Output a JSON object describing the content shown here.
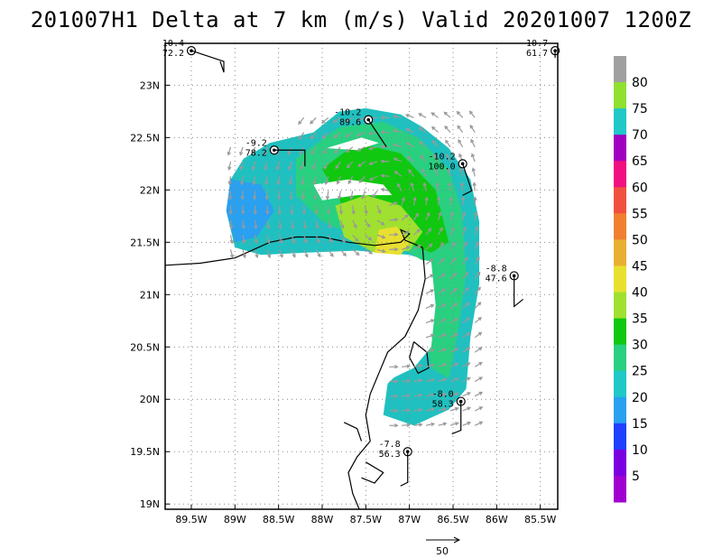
{
  "title": "201007H1  Delta  at  7  km  (m/s)  Valid  20201007  1200Z",
  "chart_data": {
    "type": "wind_map",
    "title": "201007H1  Delta  at  7  km  (m/s)  Valid  20201007  1200Z",
    "xlim": [
      -89.8,
      -85.3
    ],
    "ylim": [
      18.95,
      23.4
    ],
    "x_ticks": [
      "89.5W",
      "89W",
      "88.5W",
      "88W",
      "87.5W",
      "87W",
      "86.5W",
      "86W",
      "85.5W"
    ],
    "x_tick_values": [
      -89.5,
      -89,
      -88.5,
      -88,
      -87.5,
      -87,
      -86.5,
      -86,
      -85.5
    ],
    "y_ticks": [
      "19N",
      "19.5N",
      "20N",
      "20.5N",
      "21N",
      "21.5N",
      "22N",
      "22.5N",
      "23N"
    ],
    "y_tick_values": [
      19,
      19.5,
      20,
      20.5,
      21,
      21.5,
      22,
      22.5,
      23
    ],
    "grid": true,
    "colorbar": {
      "labels": [
        "5",
        "10",
        "15",
        "20",
        "25",
        "30",
        "35",
        "40",
        "45",
        "50",
        "55",
        "60",
        "65",
        "70",
        "75",
        "80"
      ],
      "colors": [
        "#a000d0",
        "#7a00e0",
        "#2040ff",
        "#2aa0f0",
        "#20c8c8",
        "#28d080",
        "#10c810",
        "#a0e030",
        "#e8e030",
        "#e8b030",
        "#f08030",
        "#f05040",
        "#f01080",
        "#a000c0",
        "#20c8c8",
        "#90e030",
        "#a0a0a0"
      ]
    },
    "vector_scale": {
      "label": "50",
      "value": 50
    },
    "stations": [
      {
        "label_top": "10.4",
        "label_bottom": "72.2",
        "lon": -89.5,
        "lat": 23.33
      },
      {
        "label_top": "-10.7",
        "label_bottom": "61.7",
        "lon": -85.33,
        "lat": 23.33
      },
      {
        "label_top": "-10.2",
        "label_bottom": "89.6",
        "lon": -87.47,
        "lat": 22.67
      },
      {
        "label_top": "-9.2",
        "label_bottom": "78.2",
        "lon": -88.55,
        "lat": 22.38
      },
      {
        "label_top": "-10.2",
        "label_bottom": "100.0",
        "lon": -86.39,
        "lat": 22.25
      },
      {
        "label_top": "-8.8",
        "label_bottom": "47.6",
        "lon": -85.8,
        "lat": 21.18
      },
      {
        "label_top": "-8.0",
        "label_bottom": "58.3",
        "lon": -86.41,
        "lat": 19.98
      },
      {
        "label_top": "-7.8",
        "label_bottom": "56.3",
        "lon": -87.02,
        "lat": 19.5
      }
    ]
  }
}
